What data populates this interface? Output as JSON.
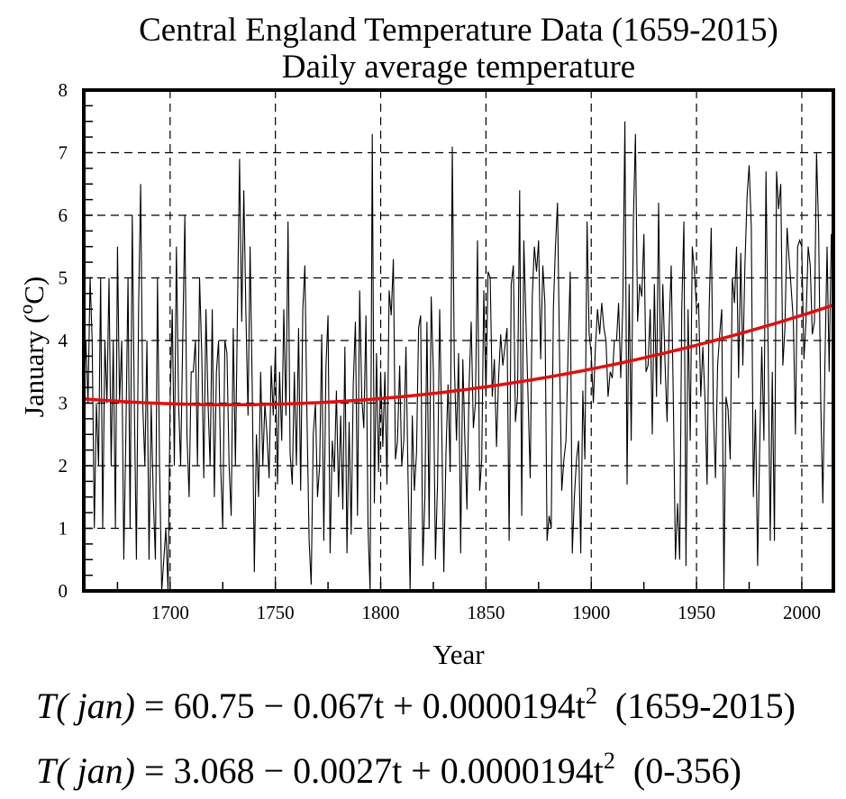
{
  "chart_data": {
    "type": "line",
    "title": "Central England Temperature Data (1659-2015)",
    "subtitle": "Daily average temperature",
    "xlabel": "Year",
    "ylabel": "January (oC)",
    "ylabel_parts": {
      "main": "January (",
      "sup": "o",
      "unit": "C)"
    },
    "xlim": [
      1659,
      2015
    ],
    "ylim": [
      0,
      8
    ],
    "xticks": [
      1700,
      1750,
      1800,
      1850,
      1900,
      1950,
      2000
    ],
    "yticks": [
      0,
      1,
      2,
      3,
      4,
      5,
      6,
      7,
      8
    ],
    "grid": true,
    "x_start": 1659,
    "series": [
      {
        "color": "#000000",
        "values": [
          3,
          4,
          3,
          5,
          4,
          1,
          3,
          2,
          5,
          1,
          4,
          3,
          5,
          2,
          4,
          1,
          5.5,
          3,
          4,
          0.5,
          2.5,
          5,
          1,
          6,
          3,
          0.5,
          4.5,
          6.5,
          3,
          2,
          4,
          0.5,
          3,
          1.5,
          0.5,
          5,
          2,
          0,
          0.5,
          1,
          0,
          3,
          4.5,
          2,
          5.5,
          3,
          2,
          4,
          6,
          2.5,
          1.5,
          3.5,
          3.5,
          4,
          2,
          5,
          3.8,
          1.8,
          4.5,
          3,
          2,
          4.5,
          1.5,
          3.5,
          4,
          2,
          1,
          4,
          3.8,
          2,
          1.2,
          4.2,
          2,
          4.5,
          6.9,
          4.3,
          6.4,
          4.4,
          2.8,
          5.5,
          3.2,
          0.3,
          2.5,
          1.5,
          3.5,
          2,
          3,
          2.5,
          1.8,
          3.6,
          2.8,
          3.9,
          1.7,
          3.5,
          2.4,
          4.5,
          2.8,
          5.9,
          2.2,
          1.7,
          3.5,
          2,
          4.2,
          1.6,
          4.5,
          5.2,
          2.8,
          0.8,
          0.1,
          2.5,
          3,
          1.5,
          2,
          4.1,
          0.8,
          3.6,
          4.4,
          0.6,
          2.4,
          1.9,
          3.2,
          1.5,
          2.8,
          1.3,
          3.9,
          0.6,
          2.7,
          0.9,
          3.3,
          4.3,
          1.2,
          4.8,
          3.1,
          2.6,
          4.4,
          1,
          0,
          7.3,
          1.4,
          3.8,
          1.9,
          3.5,
          2.3,
          3.5,
          1.7,
          4.8,
          4.4,
          5.3,
          2.1,
          2.4,
          3.6,
          2,
          2.4,
          3.9,
          1.8,
          0,
          2.8,
          1.6,
          2.2,
          4.2,
          4.4,
          0.4,
          1.5,
          4.3,
          1,
          4.7,
          3.5,
          0.5,
          1.7,
          4.5,
          2.6,
          0.3,
          2.2,
          3.3,
          1.9,
          7.1,
          3.6,
          2.4,
          3.8,
          0.6,
          3.7,
          2.4,
          1.3,
          3.3,
          4.3,
          2.6,
          3,
          5.6,
          1.6,
          2.1,
          4.8,
          3.1,
          5.1,
          5,
          3.1,
          3.7,
          2.3,
          3.4,
          4.1,
          3.6,
          3.9,
          4.2,
          0.8,
          4.9,
          5.2,
          2.7,
          3.1,
          6.4,
          1.2,
          5.6,
          4.3,
          3.1,
          1.8,
          4.7,
          5.5,
          5.1,
          5.6,
          3.7,
          5.2,
          4.6,
          0.8,
          1.2,
          1,
          4.5,
          5.5,
          6.2,
          3.6,
          1.6,
          2.1,
          2.4,
          3.8,
          5.1,
          0.6,
          1.5,
          2.1,
          2.4,
          0.6,
          3.2,
          2.1,
          5.9,
          4.1,
          3.8,
          3,
          3.9,
          4.5,
          4.1,
          4.6,
          4.2,
          4,
          3.1,
          3.5,
          3.4,
          4,
          4,
          4.6,
          3.4,
          4.6,
          7.5,
          1.7,
          4.9,
          2.4,
          5.9,
          7.3,
          4.3,
          4.9,
          4.7,
          5.7,
          3.5,
          3.6,
          4.5,
          2.5,
          4.9,
          3.1,
          6.2,
          3.3,
          4.9,
          3.7,
          2.7,
          4.2,
          5.2,
          3,
          0.5,
          1.4,
          0.5,
          4.5,
          5.9,
          0.4,
          4.5,
          2.4,
          5.5,
          5.1,
          4.5,
          4.6,
          3.1,
          3.9,
          3.1,
          1.7,
          4.5,
          5.8,
          2.9,
          1.8,
          3.6,
          4.1,
          4.5,
          0,
          3.1,
          2.9,
          2.1,
          5,
          4.6,
          5.5,
          3.4,
          5.4,
          3.6,
          5.2,
          6.3,
          6.8,
          5.8,
          1.5,
          2.9,
          0.4,
          2.3,
          3.9,
          2.4,
          6.7,
          3.8,
          0.8,
          3.5,
          0.8,
          6.7,
          6.1,
          6.5,
          3.6,
          4.2,
          5.8,
          5.3,
          4.8,
          4.3,
          2.5,
          5.5,
          5.6,
          5.5,
          3.7,
          4.3,
          5.5,
          5.2,
          4.1,
          4.3,
          7,
          5.8,
          3,
          1.4,
          3.7,
          5.5,
          3.5,
          5.7,
          5.4
        ]
      },
      {
        "color": "#e01010",
        "type": "quadratic-fit",
        "coefficients": [
          3.068,
          -0.0027,
          1.94e-05
        ]
      }
    ]
  },
  "equations": [
    {
      "lhs": "T",
      "arg": "( jan)",
      "rhs": " = 60.75 − 0.067t + 0.0000194t",
      "exp": "2",
      "range": "(1659-2015)"
    },
    {
      "lhs": "T",
      "arg": "( jan)",
      "rhs": " = 3.068 − 0.0027t + 0.0000194t",
      "exp": "2",
      "range": "(0-356)"
    }
  ]
}
